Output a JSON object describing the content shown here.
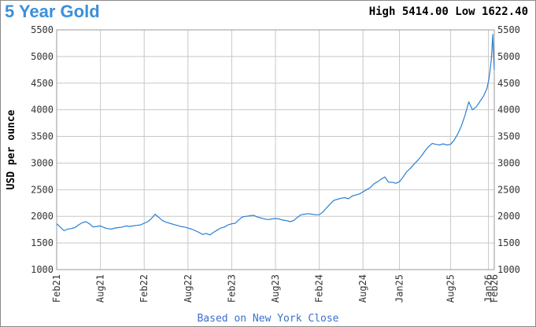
{
  "header": {
    "title": "5 Year Gold",
    "high_low": "High 5414.00 Low 1622.40"
  },
  "footer": {
    "note": "Based on New York Close"
  },
  "colors": {
    "line": "#2a7fd4",
    "grid": "#c8c8c8",
    "title": "#3b8fd9"
  },
  "chart_data": {
    "type": "line",
    "title": "5 Year Gold",
    "ylabel": "USD per ounce",
    "xlabel": "",
    "ylim": [
      1000,
      5500
    ],
    "yticks": [
      1000,
      1500,
      2000,
      2500,
      3000,
      3500,
      4000,
      4500,
      5000,
      5500
    ],
    "y_axis_both_sides": true,
    "grid": true,
    "xticks": [
      {
        "label": "Feb21",
        "month": 0
      },
      {
        "label": "Aug21",
        "month": 6
      },
      {
        "label": "Feb22",
        "month": 12
      },
      {
        "label": "Aug22",
        "month": 18
      },
      {
        "label": "Feb23",
        "month": 24
      },
      {
        "label": "Aug23",
        "month": 30
      },
      {
        "label": "Feb24",
        "month": 36
      },
      {
        "label": "Aug24",
        "month": 42
      },
      {
        "label": "Jan25",
        "month": 47
      },
      {
        "label": "Aug25",
        "month": 54
      },
      {
        "label": "Jan26",
        "month": 59.2
      },
      {
        "label": "Feb26",
        "month": 60
      }
    ],
    "series": [
      {
        "points": [
          [
            0,
            1860
          ],
          [
            0.5,
            1800
          ],
          [
            1,
            1730
          ],
          [
            1.5,
            1760
          ],
          [
            2,
            1770
          ],
          [
            2.5,
            1790
          ],
          [
            3,
            1840
          ],
          [
            3.5,
            1880
          ],
          [
            4,
            1900
          ],
          [
            4.5,
            1860
          ],
          [
            5,
            1800
          ],
          [
            5.5,
            1810
          ],
          [
            6,
            1820
          ],
          [
            6.5,
            1790
          ],
          [
            7,
            1770
          ],
          [
            7.5,
            1760
          ],
          [
            8,
            1780
          ],
          [
            8.5,
            1790
          ],
          [
            9,
            1800
          ],
          [
            9.5,
            1820
          ],
          [
            10,
            1810
          ],
          [
            10.5,
            1820
          ],
          [
            11,
            1830
          ],
          [
            11.5,
            1840
          ],
          [
            12,
            1870
          ],
          [
            12.5,
            1900
          ],
          [
            13,
            1960
          ],
          [
            13.5,
            2040
          ],
          [
            14,
            1980
          ],
          [
            14.5,
            1920
          ],
          [
            15,
            1890
          ],
          [
            15.5,
            1870
          ],
          [
            16,
            1850
          ],
          [
            16.5,
            1830
          ],
          [
            17,
            1810
          ],
          [
            17.5,
            1800
          ],
          [
            18,
            1780
          ],
          [
            18.5,
            1760
          ],
          [
            19,
            1730
          ],
          [
            19.5,
            1700
          ],
          [
            20,
            1660
          ],
          [
            20.5,
            1680
          ],
          [
            21,
            1650
          ],
          [
            21.5,
            1700
          ],
          [
            22,
            1740
          ],
          [
            22.5,
            1780
          ],
          [
            23,
            1800
          ],
          [
            23.5,
            1840
          ],
          [
            24,
            1860
          ],
          [
            24.5,
            1870
          ],
          [
            25,
            1940
          ],
          [
            25.5,
            1990
          ],
          [
            26,
            2000
          ],
          [
            26.5,
            2010
          ],
          [
            27,
            2020
          ],
          [
            27.5,
            1990
          ],
          [
            28,
            1970
          ],
          [
            28.5,
            1950
          ],
          [
            29,
            1940
          ],
          [
            29.5,
            1950
          ],
          [
            30,
            1960
          ],
          [
            30.5,
            1950
          ],
          [
            31,
            1930
          ],
          [
            31.5,
            1920
          ],
          [
            32,
            1900
          ],
          [
            32.5,
            1920
          ],
          [
            33,
            1980
          ],
          [
            33.5,
            2030
          ],
          [
            34,
            2040
          ],
          [
            34.5,
            2050
          ],
          [
            35,
            2040
          ],
          [
            35.5,
            2030
          ],
          [
            36,
            2030
          ],
          [
            36.5,
            2080
          ],
          [
            37,
            2160
          ],
          [
            37.5,
            2230
          ],
          [
            38,
            2300
          ],
          [
            38.5,
            2320
          ],
          [
            39,
            2340
          ],
          [
            39.5,
            2350
          ],
          [
            40,
            2330
          ],
          [
            40.5,
            2380
          ],
          [
            41,
            2400
          ],
          [
            41.5,
            2420
          ],
          [
            42,
            2460
          ],
          [
            42.5,
            2500
          ],
          [
            43,
            2540
          ],
          [
            43.5,
            2610
          ],
          [
            44,
            2650
          ],
          [
            44.5,
            2700
          ],
          [
            45,
            2740
          ],
          [
            45.5,
            2640
          ],
          [
            46,
            2640
          ],
          [
            46.5,
            2620
          ],
          [
            47,
            2650
          ],
          [
            47.5,
            2740
          ],
          [
            48,
            2840
          ],
          [
            48.5,
            2900
          ],
          [
            49,
            2980
          ],
          [
            49.5,
            3050
          ],
          [
            50,
            3130
          ],
          [
            50.5,
            3230
          ],
          [
            51,
            3310
          ],
          [
            51.5,
            3370
          ],
          [
            52,
            3350
          ],
          [
            52.5,
            3340
          ],
          [
            53,
            3360
          ],
          [
            53.5,
            3340
          ],
          [
            54,
            3350
          ],
          [
            54.5,
            3430
          ],
          [
            55,
            3550
          ],
          [
            55.5,
            3700
          ],
          [
            56,
            3900
          ],
          [
            56.5,
            4150
          ],
          [
            57,
            4000
          ],
          [
            57.5,
            4050
          ],
          [
            58,
            4150
          ],
          [
            58.5,
            4250
          ],
          [
            59,
            4400
          ],
          [
            59.3,
            4600
          ],
          [
            59.6,
            4950
          ],
          [
            59.8,
            5414
          ],
          [
            59.9,
            5000
          ],
          [
            60,
            4750
          ]
        ]
      }
    ]
  }
}
